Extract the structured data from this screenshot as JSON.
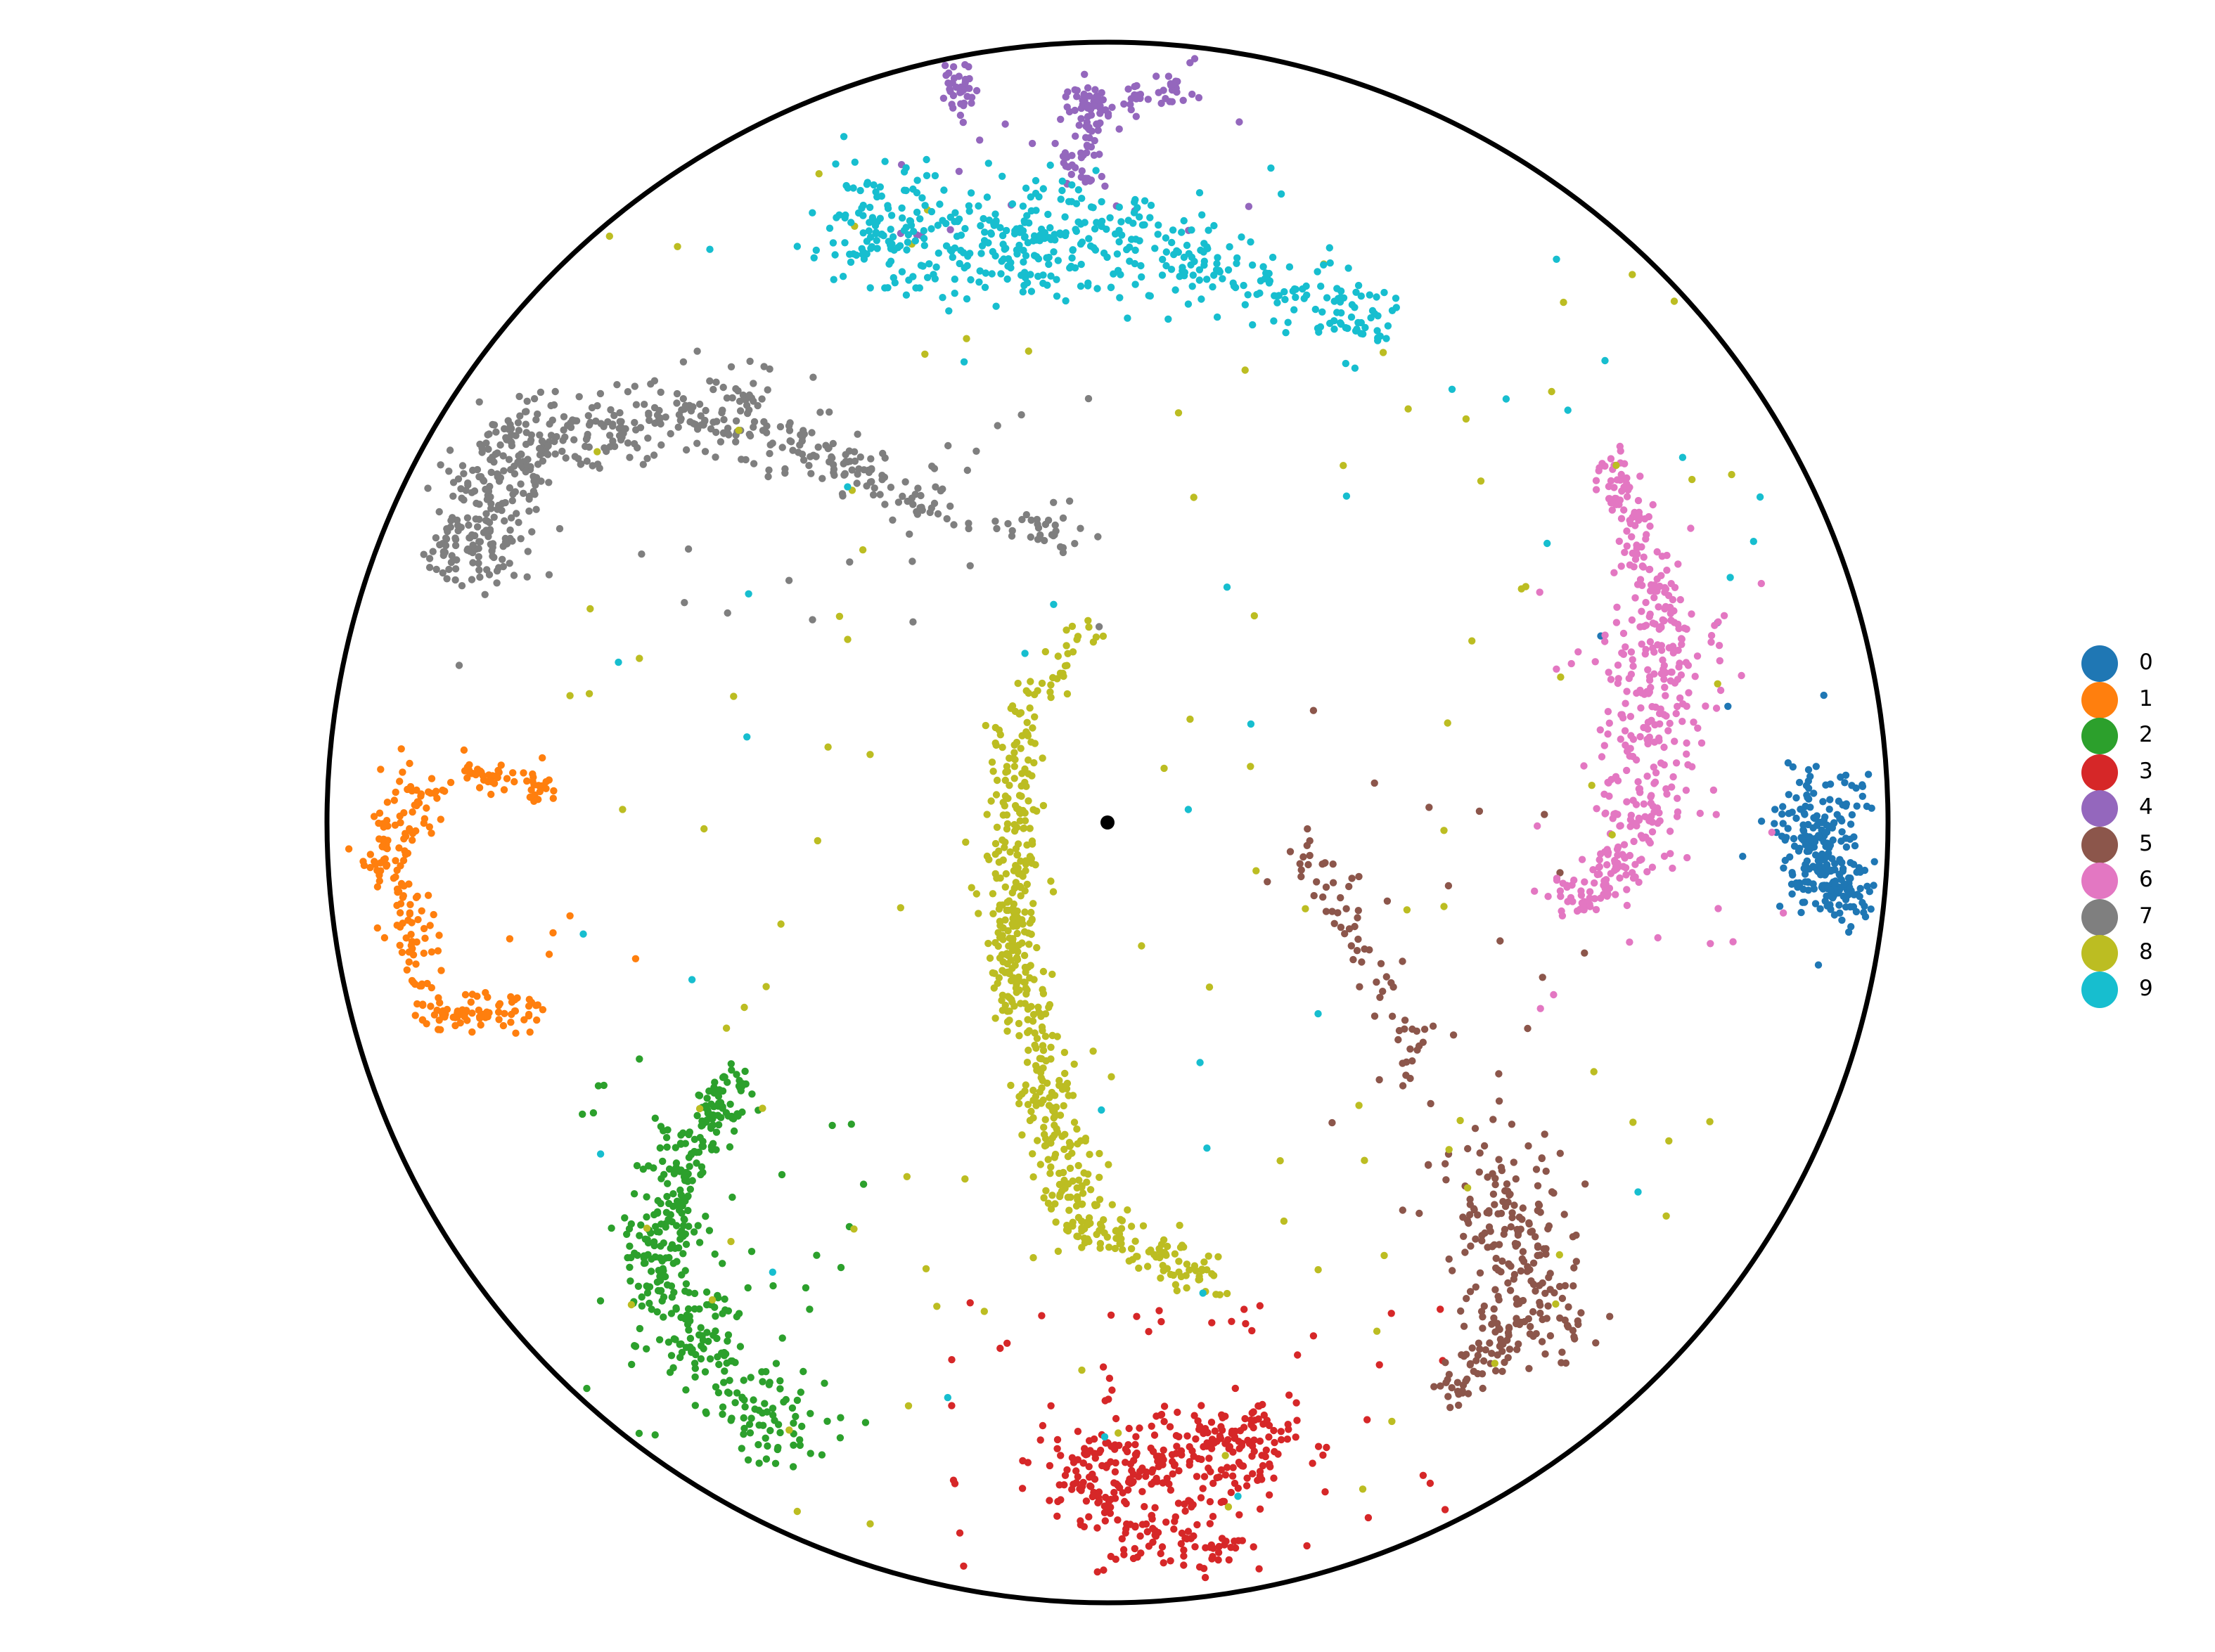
{
  "chart_data": {
    "type": "scatter",
    "title": "",
    "xlabel": "",
    "ylabel": "",
    "xlim": [
      -1.0,
      1.0
    ],
    "ylim": [
      -1.0,
      1.0
    ],
    "grid": false,
    "boundary": "unit-circle",
    "legend_placement": "right",
    "origin_marker": {
      "x": 0.0,
      "y": 0.0,
      "color": "#000000"
    },
    "series": [
      {
        "name": "0",
        "color": "#1f77b4",
        "segments": [
          {
            "from": [
              0.905,
              0.03
            ],
            "to": [
              0.92,
              -0.05
            ],
            "spread": 0.03,
            "count": 160
          },
          {
            "from": [
              0.905,
              -0.06
            ],
            "to": [
              0.955,
              -0.11
            ],
            "spread": 0.018,
            "count": 110
          }
        ],
        "scatter": {
          "count": 8,
          "xlim": [
            0.6,
            0.95
          ],
          "ylim": [
            -0.3,
            0.3
          ]
        }
      },
      {
        "name": "1",
        "color": "#ff7f0e",
        "segments": [
          {
            "from": [
              -0.88,
              0.045
            ],
            "to": [
              -0.93,
              -0.07
            ],
            "spread": 0.02,
            "count": 90
          },
          {
            "from": [
              -0.9,
              -0.09
            ],
            "to": [
              -0.87,
              -0.25
            ],
            "spread": 0.015,
            "count": 60
          },
          {
            "from": [
              -0.87,
              -0.25
            ],
            "to": [
              -0.73,
              -0.24
            ],
            "spread": 0.012,
            "count": 70
          },
          {
            "from": [
              -0.82,
              0.065
            ],
            "to": [
              -0.72,
              0.04
            ],
            "spread": 0.01,
            "count": 50
          }
        ],
        "scatter": {
          "count": 14,
          "xlim": [
            -0.95,
            -0.6
          ],
          "ylim": [
            -0.25,
            0.1
          ]
        }
      },
      {
        "name": "2",
        "color": "#2ca02c",
        "segments": [
          {
            "from": [
              -0.48,
              -0.33
            ],
            "to": [
              -0.55,
              -0.45
            ],
            "spread": 0.018,
            "count": 110
          },
          {
            "from": [
              -0.55,
              -0.45
            ],
            "to": [
              -0.58,
              -0.6
            ],
            "spread": 0.025,
            "count": 130
          },
          {
            "from": [
              -0.58,
              -0.6
            ],
            "to": [
              -0.41,
              -0.79
            ],
            "spread": 0.03,
            "count": 170
          }
        ],
        "scatter": {
          "count": 40,
          "xlim": [
            -0.7,
            -0.3
          ],
          "ylim": [
            -0.8,
            -0.3
          ]
        }
      },
      {
        "name": "3",
        "color": "#d62728",
        "segments": [
          {
            "from": [
              -0.05,
              -0.84
            ],
            "to": [
              0.22,
              -0.79
            ],
            "spread": 0.03,
            "count": 260
          },
          {
            "from": [
              -0.03,
              -0.88
            ],
            "to": [
              0.17,
              -0.93
            ],
            "spread": 0.025,
            "count": 110
          }
        ],
        "scatter": {
          "count": 60,
          "xlim": [
            -0.2,
            0.45
          ],
          "ylim": [
            -0.98,
            -0.6
          ]
        }
      },
      {
        "name": "4",
        "color": "#9467bd",
        "segments": [
          {
            "from": [
              -0.2,
              0.98
            ],
            "to": [
              -0.18,
              0.92
            ],
            "spread": 0.012,
            "count": 45
          },
          {
            "from": [
              -0.03,
              0.94
            ],
            "to": [
              -0.03,
              0.82
            ],
            "spread": 0.015,
            "count": 70
          },
          {
            "from": [
              -0.02,
              0.92
            ],
            "to": [
              0.12,
              0.95
            ],
            "spread": 0.012,
            "count": 50
          }
        ],
        "scatter": {
          "count": 25,
          "xlim": [
            -0.3,
            0.2
          ],
          "ylim": [
            0.75,
            0.95
          ]
        }
      },
      {
        "name": "5",
        "color": "#8c564b",
        "segments": [
          {
            "from": [
              0.25,
              -0.02
            ],
            "to": [
              0.41,
              -0.33
            ],
            "spread": 0.02,
            "count": 70
          },
          {
            "from": [
              0.49,
              -0.45
            ],
            "to": [
              0.55,
              -0.65
            ],
            "spread": 0.04,
            "count": 200
          },
          {
            "from": [
              0.52,
              -0.65
            ],
            "to": [
              0.43,
              -0.74
            ],
            "spread": 0.015,
            "count": 60
          }
        ],
        "scatter": {
          "count": 25,
          "xlim": [
            0.2,
            0.65
          ],
          "ylim": [
            -0.7,
            0.15
          ]
        }
      },
      {
        "name": "6",
        "color": "#e377c2",
        "segments": [
          {
            "from": [
              0.64,
              0.46
            ],
            "to": [
              0.72,
              0.25
            ],
            "spread": 0.015,
            "count": 120
          },
          {
            "from": [
              0.72,
              0.25
            ],
            "to": [
              0.68,
              -0.03
            ],
            "spread": 0.035,
            "count": 220
          },
          {
            "from": [
              0.68,
              -0.03
            ],
            "to": [
              0.58,
              -0.11
            ],
            "spread": 0.02,
            "count": 90
          }
        ],
        "scatter": {
          "count": 30,
          "xlim": [
            0.55,
            0.9
          ],
          "ylim": [
            -0.25,
            0.4
          ]
        }
      },
      {
        "name": "7",
        "color": "#7f7f7f",
        "segments": [
          {
            "from": [
              -0.82,
              0.33
            ],
            "to": [
              -0.75,
              0.49
            ],
            "spread": 0.03,
            "count": 220
          },
          {
            "from": [
              -0.75,
              0.49
            ],
            "to": [
              -0.46,
              0.53
            ],
            "spread": 0.025,
            "count": 200
          },
          {
            "from": [
              -0.46,
              0.51
            ],
            "to": [
              -0.2,
              0.4
            ],
            "spread": 0.02,
            "count": 120
          },
          {
            "from": [
              -0.13,
              0.39
            ],
            "to": [
              -0.05,
              0.37
            ],
            "spread": 0.015,
            "count": 30
          }
        ],
        "scatter": {
          "count": 30,
          "xlim": [
            -0.8,
            0.0
          ],
          "ylim": [
            0.25,
            0.6
          ]
        }
      },
      {
        "name": "8",
        "color": "#bcbd22",
        "segments": [
          {
            "from": [
              -0.12,
              0.1
            ],
            "to": [
              -0.12,
              -0.2
            ],
            "spread": 0.018,
            "count": 220
          },
          {
            "from": [
              -0.12,
              -0.2
            ],
            "to": [
              -0.03,
              -0.52
            ],
            "spread": 0.02,
            "count": 220
          },
          {
            "from": [
              -0.03,
              -0.52
            ],
            "to": [
              0.15,
              -0.59
            ],
            "spread": 0.015,
            "count": 90
          },
          {
            "from": [
              -0.12,
              0.12
            ],
            "to": [
              -0.02,
              0.25
            ],
            "spread": 0.012,
            "count": 40
          }
        ],
        "scatter": {
          "count": 120,
          "xlim": [
            -0.7,
            0.85
          ],
          "ylim": [
            -0.95,
            0.85
          ]
        }
      },
      {
        "name": "9",
        "color": "#17becf",
        "segments": [
          {
            "from": [
              -0.34,
              0.76
            ],
            "to": [
              0.05,
              0.74
            ],
            "spread": 0.04,
            "count": 360
          },
          {
            "from": [
              0.05,
              0.74
            ],
            "to": [
              0.35,
              0.64
            ],
            "spread": 0.025,
            "count": 160
          }
        ],
        "scatter": {
          "count": 40,
          "xlim": [
            -0.7,
            0.85
          ],
          "ylim": [
            -0.9,
            0.85
          ]
        }
      }
    ]
  }
}
